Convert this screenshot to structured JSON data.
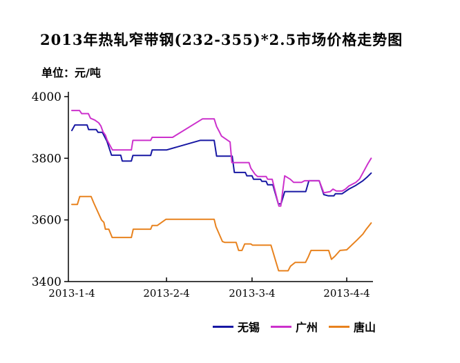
{
  "title": "2013年热轧窄带钢(232-355)*2.5市场价格走势图",
  "unit_label": "单位：元/吨",
  "colors": {
    "axis": "#000000",
    "wuxi": "#1717A3",
    "guangzhou": "#CC30CC",
    "tangshan": "#E8821E"
  },
  "chart_data": {
    "type": "line",
    "title": "2013年热轧窄带钢(232-355)*2.5市场价格走势图",
    "ylabel": "元/吨",
    "ylim": [
      3400,
      4000
    ],
    "y_ticks": [
      3400,
      3600,
      3800,
      4000
    ],
    "xlim_days": [
      0,
      98
    ],
    "x_tick_labels": [
      "2013-1-4",
      "2013-2-4",
      "2013-3-4",
      "2013-4-4"
    ],
    "x_tick_days": [
      0,
      31,
      59,
      90
    ],
    "grid": false,
    "legend_position": "bottom",
    "series": [
      {
        "name": "无锡",
        "key": "wuxi",
        "color": "#1717A3",
        "points": [
          [
            0,
            3890
          ],
          [
            1,
            3908
          ],
          [
            5,
            3908
          ],
          [
            5.5,
            3893
          ],
          [
            8,
            3893
          ],
          [
            8.6,
            3884
          ],
          [
            10,
            3884
          ],
          [
            11.5,
            3855
          ],
          [
            13,
            3810
          ],
          [
            16,
            3810
          ],
          [
            16.5,
            3791
          ],
          [
            19.5,
            3791
          ],
          [
            20,
            3809
          ],
          [
            25.8,
            3809
          ],
          [
            26.3,
            3827
          ],
          [
            31,
            3827
          ],
          [
            42,
            3858
          ],
          [
            46.6,
            3858
          ],
          [
            47.4,
            3807
          ],
          [
            52.5,
            3807
          ],
          [
            53.2,
            3754
          ],
          [
            56.8,
            3754
          ],
          [
            57.3,
            3743
          ],
          [
            59,
            3743
          ],
          [
            59.5,
            3732
          ],
          [
            61.8,
            3732
          ],
          [
            62.2,
            3725
          ],
          [
            63.6,
            3725
          ],
          [
            64.1,
            3714
          ],
          [
            65.8,
            3714
          ],
          [
            67.6,
            3652
          ],
          [
            68.5,
            3652
          ],
          [
            69.7,
            3692
          ],
          [
            76.6,
            3692
          ],
          [
            77.6,
            3727
          ],
          [
            81,
            3727
          ],
          [
            82.5,
            3682
          ],
          [
            84,
            3678
          ],
          [
            85.8,
            3678
          ],
          [
            86.3,
            3685
          ],
          [
            88.5,
            3685
          ],
          [
            90.7,
            3700
          ],
          [
            93,
            3712
          ],
          [
            95.3,
            3727
          ],
          [
            96.8,
            3740
          ],
          [
            98,
            3752
          ]
        ]
      },
      {
        "name": "广州",
        "key": "guangzhou",
        "color": "#CC30CC",
        "points": [
          [
            0,
            3955
          ],
          [
            2.5,
            3955
          ],
          [
            3.2,
            3945
          ],
          [
            5.4,
            3945
          ],
          [
            6.1,
            3930
          ],
          [
            7.5,
            3924
          ],
          [
            8.8,
            3915
          ],
          [
            9.5,
            3905
          ],
          [
            10.2,
            3886
          ],
          [
            11,
            3875
          ],
          [
            11.6,
            3858
          ],
          [
            13.3,
            3827
          ],
          [
            19.5,
            3827
          ],
          [
            20,
            3858
          ],
          [
            25.8,
            3858
          ],
          [
            26.3,
            3868
          ],
          [
            33,
            3868
          ],
          [
            42.8,
            3928
          ],
          [
            46.6,
            3928
          ],
          [
            47.4,
            3903
          ],
          [
            48.3,
            3886
          ],
          [
            49,
            3872
          ],
          [
            51.8,
            3853
          ],
          [
            52.4,
            3786
          ],
          [
            58,
            3786
          ],
          [
            58.6,
            3768
          ],
          [
            60,
            3748
          ],
          [
            60.8,
            3741
          ],
          [
            63.6,
            3741
          ],
          [
            64.1,
            3732
          ],
          [
            65.6,
            3732
          ],
          [
            67.8,
            3645
          ],
          [
            68.4,
            3645
          ],
          [
            69.7,
            3743
          ],
          [
            71.5,
            3732
          ],
          [
            72.6,
            3722
          ],
          [
            75.2,
            3722
          ],
          [
            76.2,
            3727
          ],
          [
            81,
            3727
          ],
          [
            82.5,
            3688
          ],
          [
            84.6,
            3692
          ],
          [
            85.5,
            3700
          ],
          [
            86.6,
            3694
          ],
          [
            88.5,
            3694
          ],
          [
            89.6,
            3700
          ],
          [
            90.7,
            3710
          ],
          [
            93,
            3722
          ],
          [
            94.2,
            3733
          ],
          [
            95.7,
            3760
          ],
          [
            96.9,
            3782
          ],
          [
            98,
            3800
          ]
        ]
      },
      {
        "name": "唐山",
        "key": "tangshan",
        "color": "#E8821E",
        "points": [
          [
            0,
            3650
          ],
          [
            1.8,
            3650
          ],
          [
            2.6,
            3676
          ],
          [
            6.3,
            3676
          ],
          [
            7.2,
            3655
          ],
          [
            9.7,
            3600
          ],
          [
            10.5,
            3592
          ],
          [
            11,
            3570
          ],
          [
            12.1,
            3570
          ],
          [
            13.2,
            3543
          ],
          [
            19.5,
            3543
          ],
          [
            20.1,
            3570
          ],
          [
            25.8,
            3570
          ],
          [
            26.3,
            3582
          ],
          [
            28,
            3582
          ],
          [
            30.8,
            3602
          ],
          [
            46.6,
            3602
          ],
          [
            47.2,
            3578
          ],
          [
            49.3,
            3530
          ],
          [
            50.1,
            3527
          ],
          [
            53.8,
            3527
          ],
          [
            54.6,
            3501
          ],
          [
            55.7,
            3501
          ],
          [
            56.6,
            3522
          ],
          [
            58.6,
            3522
          ],
          [
            59.2,
            3518
          ],
          [
            65.2,
            3518
          ],
          [
            67.7,
            3435
          ],
          [
            70.8,
            3435
          ],
          [
            71.6,
            3450
          ],
          [
            73.1,
            3462
          ],
          [
            76.5,
            3462
          ],
          [
            77.4,
            3480
          ],
          [
            78.3,
            3501
          ],
          [
            84.1,
            3501
          ],
          [
            85,
            3472
          ],
          [
            86.1,
            3482
          ],
          [
            87.8,
            3501
          ],
          [
            90,
            3503
          ],
          [
            91.9,
            3521
          ],
          [
            93.4,
            3535
          ],
          [
            95.3,
            3554
          ],
          [
            96.4,
            3570
          ],
          [
            98,
            3590
          ]
        ]
      }
    ]
  }
}
